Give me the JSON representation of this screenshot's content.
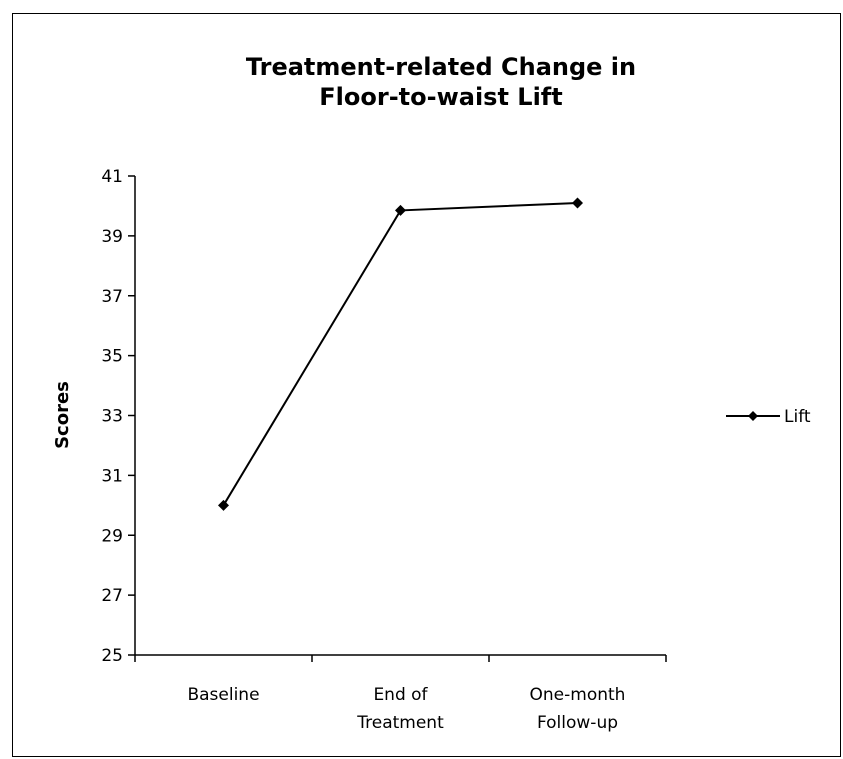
{
  "chart_data": {
    "type": "line",
    "title": [
      "Treatment-related Change in",
      "Floor-to-waist Lift"
    ],
    "xlabel": "",
    "ylabel": "Scores",
    "categories": [
      [
        "Baseline"
      ],
      [
        "End of",
        "Treatment"
      ],
      [
        "One-month",
        "Follow-up"
      ]
    ],
    "series": [
      {
        "name": "Lift",
        "values": [
          30.0,
          39.85,
          40.1
        ],
        "color": "#000000",
        "marker": "diamond"
      }
    ],
    "ylim": [
      25,
      41
    ],
    "yticks": [
      25,
      27,
      29,
      31,
      33,
      35,
      37,
      39,
      41
    ],
    "grid": false,
    "legend_position": "right"
  }
}
